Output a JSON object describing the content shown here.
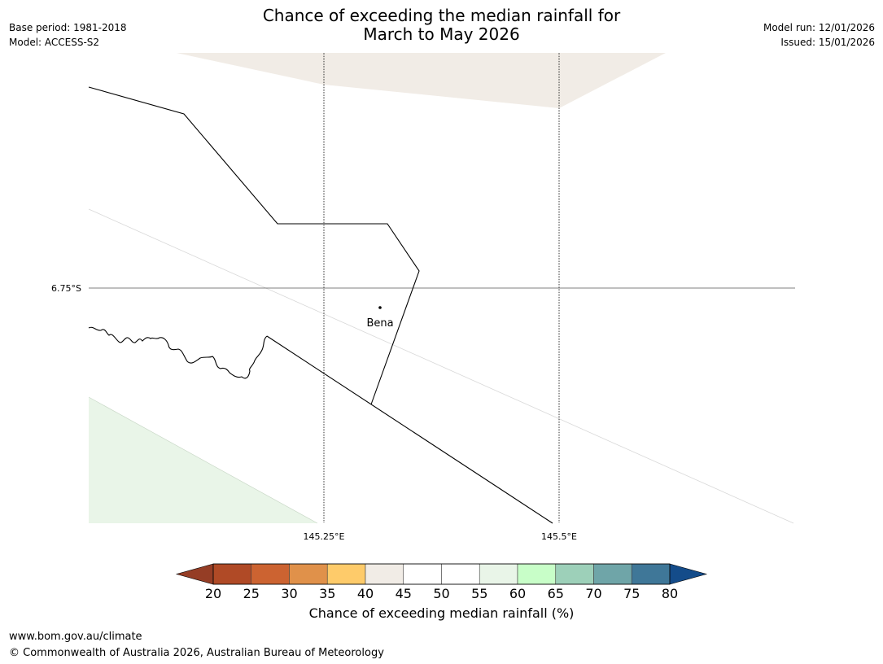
{
  "title": {
    "line1": "Chance of exceeding the median rainfall for",
    "line2": "March to May 2026"
  },
  "meta_left": {
    "base_period": "Base period: 1981-2018",
    "model": "Model: ACCESS-S2"
  },
  "meta_right": {
    "model_run": "Model run: 12/01/2026",
    "issued": "Issued: 15/01/2026"
  },
  "map": {
    "lat_label": "6.75°S",
    "lon_labels": [
      "145.25°E",
      "145.5°E"
    ],
    "place": "Bena"
  },
  "colorbar": {
    "ticks": [
      "20",
      "25",
      "30",
      "35",
      "40",
      "45",
      "50",
      "55",
      "60",
      "65",
      "70",
      "75",
      "80"
    ],
    "colors": [
      "#b04a26",
      "#cc6331",
      "#e0914a",
      "#fecb6a",
      "#f1ece6",
      "#ffffff",
      "#ffffff",
      "#e9f5e8",
      "#c8fec8",
      "#9dd0b9",
      "#6fa5a8",
      "#3f7798"
    ],
    "under_color": "#953d25",
    "over_color": "#144c8a",
    "label": "Chance of exceeding median rainfall (%)"
  },
  "footer": {
    "url": "www.bom.gov.au/climate",
    "copyright": "© Commonwealth of Australia 2026, Australian Bureau of Meteorology"
  }
}
